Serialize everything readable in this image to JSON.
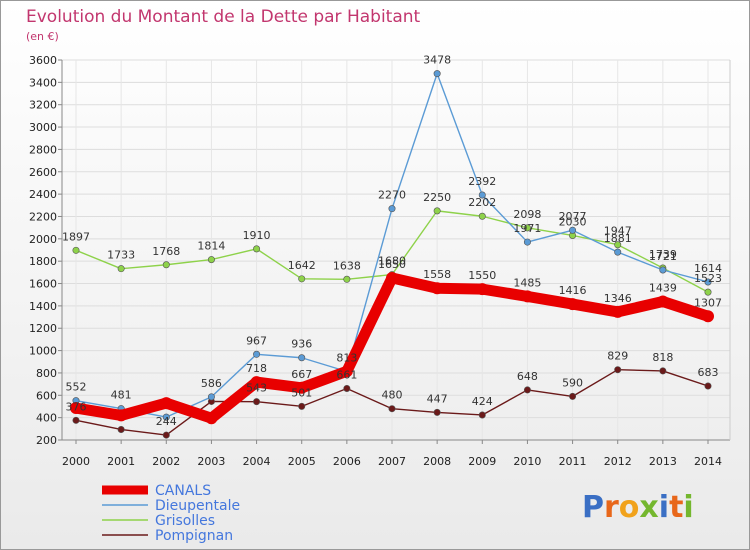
{
  "chart_data": {
    "type": "line",
    "title": "Evolution du Montant de la Dette par Habitant",
    "subtitle": "(en €)",
    "xlabel": "",
    "ylabel": "",
    "x": [
      "2000",
      "2001",
      "2002",
      "2003",
      "2004",
      "2005",
      "2006",
      "2007",
      "2008",
      "2009",
      "2010",
      "2011",
      "2012",
      "2013",
      "2014"
    ],
    "ylim": [
      200,
      3600
    ],
    "yticks": [
      "200",
      "400",
      "600",
      "800",
      "1000",
      "1200",
      "1400",
      "1600",
      "1800",
      "2000",
      "2200",
      "2400",
      "2600",
      "2800",
      "3000",
      "3200",
      "3400",
      "3600"
    ],
    "grid": true,
    "legend_position": "bottom-left",
    "series": [
      {
        "name": "CANALS",
        "color": "#e80000",
        "values": [
          486,
          420,
          530,
          395,
          718,
          667,
          815,
          1650,
          1558,
          1550,
          1485,
          1416,
          1346,
          1439,
          1307
        ],
        "labels": [
          "",
          "",
          "",
          "",
          "718",
          "667",
          "",
          "1650",
          "1558",
          "1550",
          "1485",
          "1416",
          "1346",
          "1439",
          "1307"
        ]
      },
      {
        "name": "Dieupentale",
        "color": "#5b9bd5",
        "values": [
          552,
          481,
          405,
          586,
          967,
          936,
          813,
          2270,
          3478,
          2392,
          1971,
          2077,
          1881,
          1721,
          1614
        ],
        "labels": [
          "552",
          "481",
          "",
          "586",
          "967",
          "936",
          "813",
          "2270",
          "3478",
          "2392",
          "1971",
          "2077",
          "1881",
          "1721",
          "1614"
        ]
      },
      {
        "name": "Grisolles",
        "color": "#8ed24a",
        "values": [
          1897,
          1733,
          1768,
          1814,
          1910,
          1642,
          1638,
          1680,
          2250,
          2202,
          2098,
          2030,
          1947,
          1739,
          1523
        ],
        "labels": [
          "1897",
          "1733",
          "1768",
          "1814",
          "1910",
          "1642",
          "1638",
          "1680",
          "2250",
          "2202",
          "2098",
          "2030",
          "1947",
          "1739",
          "1523"
        ]
      },
      {
        "name": "Pompignan",
        "color": "#6b1a1a",
        "values": [
          376,
          294,
          244,
          545,
          543,
          501,
          661,
          480,
          447,
          424,
          648,
          590,
          829,
          818,
          683
        ],
        "labels": [
          "376",
          "",
          "244",
          "",
          "543",
          "501",
          "661",
          "480",
          "447",
          "424",
          "648",
          "590",
          "829",
          "818",
          "683"
        ]
      }
    ]
  },
  "logo": {
    "text": "Proxiti"
  }
}
